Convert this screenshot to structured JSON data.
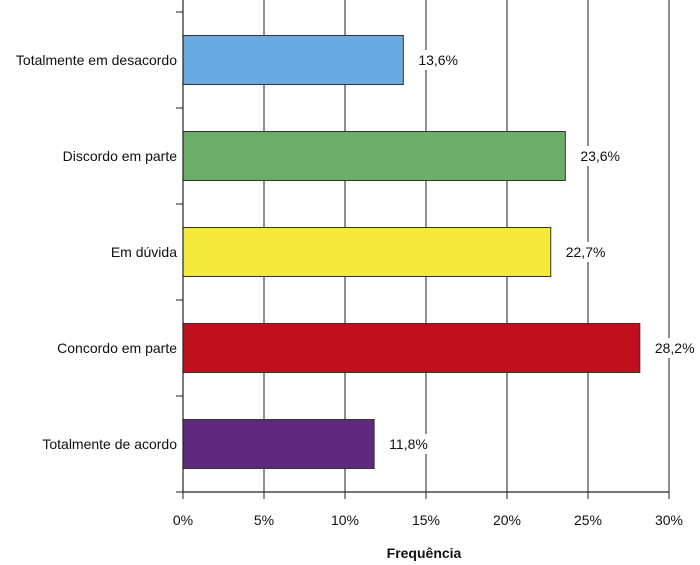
{
  "chart_data": {
    "type": "bar",
    "orientation": "horizontal",
    "categories": [
      "Totalmente em desacordo",
      "Discordo em parte",
      "Em dúvida",
      "Concordo em parte",
      "Totalmente de acordo"
    ],
    "values": [
      13.6,
      23.6,
      22.7,
      28.2,
      11.8
    ],
    "data_labels": [
      "13,6%",
      "23,6%",
      "22,7%",
      "28,2%",
      "11,8%"
    ],
    "colors": [
      "#6aaae2",
      "#6aae6a",
      "#f5e93c",
      "#c10f1e",
      "#5e2a7e"
    ],
    "xlabel": "Frequência",
    "xlim": [
      0,
      30
    ],
    "xticks": [
      0,
      5,
      10,
      15,
      20,
      25,
      30
    ],
    "xtick_labels": [
      "0%",
      "5%",
      "10%",
      "15%",
      "20%",
      "25%",
      "30%"
    ],
    "grid": "vertical",
    "legend": "none"
  }
}
